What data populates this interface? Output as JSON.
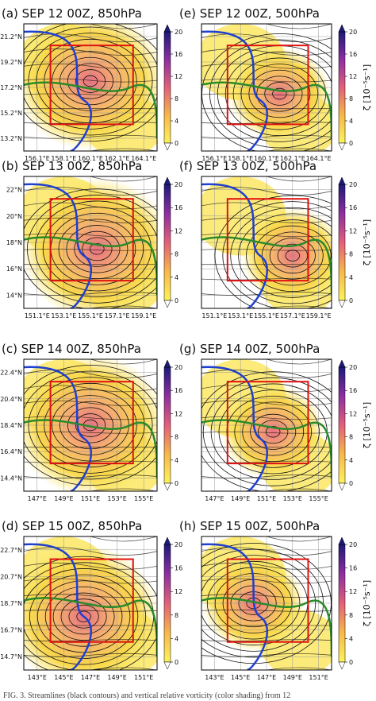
{
  "figure": {
    "panels": [
      {
        "title": "(a) SEP 12 00Z, 850hPa",
        "xticks": [
          "156.1°E",
          "158.1°E",
          "160.1°E",
          "162.1°E",
          "164.1°E"
        ],
        "yticks": [
          "21.2°N",
          "19.2°N",
          "17.2°N",
          "15.2°N",
          "13.2°N"
        ]
      },
      {
        "title": "(b) SEP 13 00Z, 850hPa",
        "xticks": [
          "151.1°E",
          "153.1°E",
          "155.1°E",
          "157.1°E",
          "159.1°E"
        ],
        "yticks": [
          "22°N",
          "20°N",
          "18°N",
          "16°N",
          "14°N"
        ]
      },
      {
        "title": "(c) SEP 14 00Z, 850hPa",
        "xticks": [
          "147°E",
          "149°E",
          "151°E",
          "153°E",
          "155°E"
        ],
        "yticks": [
          "22.4°N",
          "20.4°N",
          "18.4°N",
          "16.4°N",
          "14.4°N"
        ]
      },
      {
        "title": "(d) SEP 15 00Z, 850hPa",
        "xticks": [
          "143°E",
          "145°E",
          "147°E",
          "149°E",
          "151°E"
        ],
        "yticks": [
          "22.7°N",
          "20.7°N",
          "18.7°N",
          "16.7°N",
          "14.7°N"
        ]
      },
      {
        "title": "(e) SEP 12 00Z, 500hPa",
        "xticks": [
          "156.1°E",
          "158.1°E",
          "160.1°E",
          "162.1°E",
          "164.1°E"
        ]
      },
      {
        "title": "(f) SEP 13 00Z, 500hPa",
        "xticks": [
          "151.1°E",
          "153.1°E",
          "155.1°E",
          "157.1°E",
          "159.1°E"
        ]
      },
      {
        "title": "(g) SEP 14 00Z, 500hPa",
        "xticks": [
          "147°E",
          "149°E",
          "151°E",
          "153°E",
          "155°E"
        ]
      },
      {
        "title": "(h) SEP 15 00Z, 500hPa",
        "xticks": [
          "143°E",
          "145°E",
          "147°E",
          "149°E",
          "151°E"
        ]
      }
    ],
    "colorbar_ticks": [
      0,
      4,
      8,
      12,
      16,
      20
    ],
    "colorbar_label": "ζ [10⁻⁵s⁻¹]",
    "caption": "FIG. 3. Streamlines (black contours) and vertical relative vorticity (color shading) from 12"
  }
}
